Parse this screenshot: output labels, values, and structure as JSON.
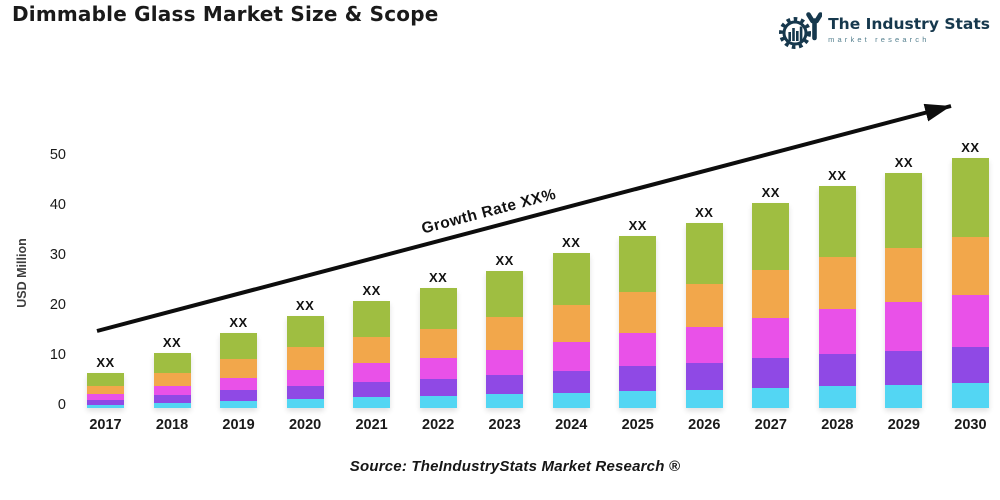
{
  "header": {
    "title": "Dimmable Glass Market Size & Scope",
    "logo": {
      "name": "The Industry Stats",
      "tagline": "market research",
      "brand_color": "#16384d",
      "tagline_color": "#55808f"
    }
  },
  "footer": {
    "source": "Source: TheIndustryStats Market Research ®"
  },
  "chart_data": {
    "type": "bar",
    "stacked": true,
    "title": "Dimmable Glass Market Size & Scope",
    "xlabel": "",
    "ylabel": "USD Million",
    "ylim": [
      0,
      50
    ],
    "yticks": [
      0,
      10,
      20,
      30,
      40,
      50
    ],
    "grid": false,
    "legend": "none",
    "bar_value_label": "XX",
    "annotation": {
      "type": "trend-arrow",
      "text": "Growth Rate XX%",
      "color": "#0d0d0d"
    },
    "categories": [
      "2017",
      "2018",
      "2019",
      "2020",
      "2021",
      "2022",
      "2023",
      "2024",
      "2025",
      "2026",
      "2027",
      "2028",
      "2029",
      "2030"
    ],
    "totals_estimated": [
      7,
      11,
      15,
      18.5,
      21.5,
      24,
      27.5,
      31,
      34.5,
      37,
      41,
      44.5,
      47,
      50
    ],
    "series": [
      {
        "name": "series-1-cyan",
        "color": "#53d6f3",
        "values": [
          0.7,
          1.1,
          1.5,
          1.9,
          2.2,
          2.4,
          2.8,
          3.1,
          3.5,
          3.7,
          4.1,
          4.5,
          4.7,
          5.0
        ]
      },
      {
        "name": "series-2-purple",
        "color": "#8f49e5",
        "values": [
          1.0,
          1.5,
          2.1,
          2.6,
          3.0,
          3.4,
          3.9,
          4.4,
          4.9,
          5.3,
          5.9,
          6.4,
          6.8,
          7.2
        ]
      },
      {
        "name": "series-3-magenta",
        "color": "#e951e8",
        "values": [
          1.1,
          1.8,
          2.5,
          3.2,
          3.8,
          4.3,
          5.0,
          5.8,
          6.6,
          7.2,
          8.1,
          9.0,
          9.7,
          10.5
        ]
      },
      {
        "name": "series-4-orange",
        "color": "#f2a74b",
        "values": [
          1.7,
          2.7,
          3.7,
          4.5,
          5.2,
          5.8,
          6.6,
          7.4,
          8.2,
          8.7,
          9.6,
          10.3,
          10.9,
          11.5
        ]
      },
      {
        "name": "series-5-green",
        "color": "#9fbe41",
        "values": [
          2.5,
          3.9,
          5.2,
          6.3,
          7.3,
          8.1,
          9.2,
          10.3,
          11.3,
          12.1,
          13.3,
          14.3,
          14.9,
          15.8
        ]
      }
    ]
  }
}
